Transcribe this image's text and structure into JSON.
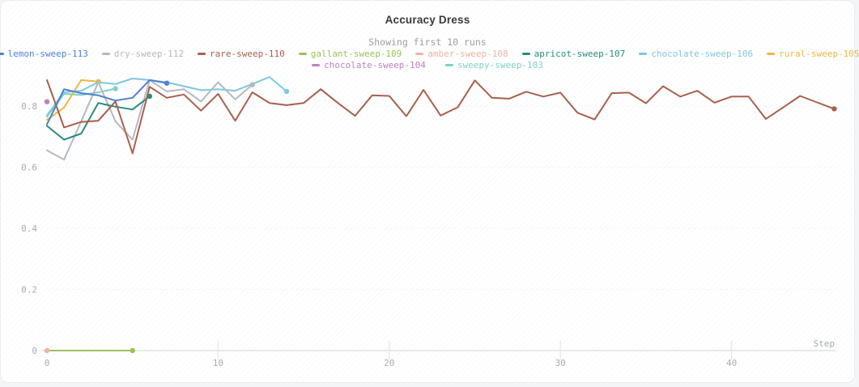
{
  "header": {
    "title": "Accuracy Dress",
    "subtitle": "Showing first 10 runs"
  },
  "axes": {
    "x_label": "Step",
    "x_ticks": [
      0,
      10,
      20,
      30,
      40
    ],
    "y_ticks": [
      0,
      0.2,
      0.4,
      0.6,
      0.8
    ]
  },
  "chart_data": {
    "type": "line",
    "title": "Accuracy Dress",
    "subtitle": "Showing first 10 runs",
    "xlabel": "Step",
    "ylabel": "",
    "xlim": [
      0,
      47
    ],
    "ylim": [
      0,
      0.93
    ],
    "grid": "horizontal-dotted",
    "legend_position": "top",
    "series": [
      {
        "name": "lemon-sweep-113",
        "color": "#4e7fd4",
        "z": 10,
        "start_step": 0,
        "values": [
          0.74,
          0.855,
          0.842,
          0.835,
          0.818,
          0.827,
          0.885,
          0.875
        ]
      },
      {
        "name": "dry-sweep-112",
        "color": "#b4b9c0",
        "z": 7,
        "start_step": 0,
        "values": [
          0.655,
          0.625,
          0.75,
          0.878,
          0.75,
          0.69,
          0.885,
          0.848,
          0.855,
          0.815,
          0.878,
          0.822,
          0.87
        ]
      },
      {
        "name": "rare-sweep-110",
        "color": "#a9604c",
        "z": 9,
        "start_step": 0,
        "values": [
          0.885,
          0.73,
          0.748,
          0.752,
          0.815,
          0.645,
          0.863,
          0.827,
          0.838,
          0.785,
          0.84,
          0.752,
          0.845,
          0.81,
          0.803,
          0.81,
          0.855,
          0.81,
          0.768,
          0.835,
          0.833,
          0.767,
          0.853,
          0.769,
          0.796,
          0.884,
          0.827,
          0.824,
          0.847,
          0.831,
          0.844,
          0.778,
          0.756,
          0.842,
          0.844,
          0.809,
          0.865,
          0.831,
          0.85,
          0.811,
          0.831,
          0.831,
          0.758,
          0.795,
          0.833,
          0.812,
          0.791
        ]
      },
      {
        "name": "gallant-sweep-109",
        "color": "#9cc25c",
        "z": 1,
        "start_step": 0,
        "values": [
          0,
          0,
          0,
          0,
          0,
          0
        ]
      },
      {
        "name": "amber-sweep-108",
        "color": "#edb3a0",
        "z": 2,
        "start_step": 0,
        "values": [
          0
        ]
      },
      {
        "name": "apricot-sweep-107",
        "color": "#268d7e",
        "z": 8,
        "start_step": 0,
        "values": [
          0.735,
          0.69,
          0.71,
          0.81,
          0.798,
          0.789,
          0.832
        ]
      },
      {
        "name": "chocolate-sweep-106",
        "color": "#7ec7e0",
        "z": 6,
        "start_step": 0,
        "values": [
          0.77,
          0.845,
          0.85,
          0.878,
          0.872,
          0.89,
          0.885,
          0.878,
          0.865,
          0.852,
          0.855,
          0.85,
          0.872,
          0.895,
          0.848
        ]
      },
      {
        "name": "rural-sweep-105",
        "color": "#ebb83e",
        "z": 5,
        "start_step": 0,
        "values": [
          0.755,
          0.795,
          0.885,
          0.88
        ]
      },
      {
        "name": "chocolate-sweep-104",
        "color": "#be82c2",
        "z": 3,
        "start_step": 0,
        "values": [
          0.814
        ]
      },
      {
        "name": "sweepy-sweep-103",
        "color": "#7fd1c5",
        "z": 4,
        "start_step": 0,
        "values": [
          0.765,
          0.84,
          0.836,
          0.845,
          0.857
        ]
      }
    ],
    "legend_rows": [
      [
        0,
        1,
        2,
        3,
        4,
        5,
        6,
        7
      ],
      [
        8,
        9
      ]
    ]
  }
}
